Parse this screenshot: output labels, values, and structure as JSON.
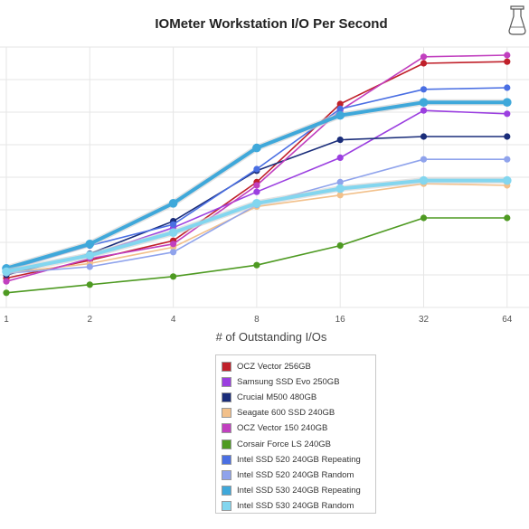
{
  "chart_data": {
    "type": "line",
    "title": "IOMeter Workstation I/O Per Second",
    "xlabel": "# of Outstanding I/Os",
    "ylabel": "",
    "x": [
      1,
      2,
      4,
      8,
      16,
      32,
      64
    ],
    "x_scale": "log2",
    "ylim": [
      0,
      8
    ],
    "grid": true,
    "legend_position": "bottom-center",
    "series": [
      {
        "name": "OCZ Vector 256GB",
        "color": "#c0202a",
        "values": [
          0.9,
          1.45,
          2.05,
          3.85,
          6.25,
          7.5,
          7.55
        ]
      },
      {
        "name": "Samsung SSD Evo 250GB",
        "color": "#9b3fe0",
        "values": [
          1.05,
          1.6,
          2.45,
          3.55,
          4.6,
          6.05,
          5.95
        ]
      },
      {
        "name": "Crucial M500 480GB",
        "color": "#1a2d7a",
        "values": [
          1.0,
          1.65,
          2.65,
          4.2,
          5.15,
          5.25,
          5.25
        ]
      },
      {
        "name": "Seagate 600 SSD 240GB",
        "color": "#f2c08a",
        "values": [
          1.05,
          1.35,
          1.85,
          3.1,
          3.45,
          3.8,
          3.75
        ]
      },
      {
        "name": "OCZ Vector 150 240GB",
        "color": "#c13fbf",
        "values": [
          0.8,
          1.5,
          1.95,
          3.75,
          6.05,
          7.7,
          7.75
        ]
      },
      {
        "name": "Corsair Force LS 240GB",
        "color": "#4e9a22",
        "values": [
          0.45,
          0.7,
          0.95,
          1.3,
          1.9,
          2.75,
          2.75
        ]
      },
      {
        "name": "Intel SSD 520 240GB Repeating",
        "color": "#4a6fe3",
        "values": [
          1.15,
          1.9,
          2.55,
          4.25,
          6.1,
          6.7,
          6.75
        ]
      },
      {
        "name": "Intel SSD 520 240GB Random",
        "color": "#8fa3ec",
        "values": [
          1.05,
          1.25,
          1.7,
          3.15,
          3.85,
          4.55,
          4.55
        ]
      },
      {
        "name": "Intel SSD 530 240GB Repeating",
        "color": "#3fa8da",
        "values": [
          1.2,
          1.95,
          3.2,
          4.9,
          5.9,
          6.3,
          6.3
        ]
      },
      {
        "name": "Intel SSD 530 240GB Random",
        "color": "#83d6ef",
        "values": [
          1.1,
          1.6,
          2.3,
          3.2,
          3.65,
          3.9,
          3.9
        ]
      }
    ],
    "bold_series": [
      "Intel SSD 530 240GB Repeating",
      "Intel SSD 530 240GB Random"
    ]
  },
  "xtick_labels": [
    "1",
    "2",
    "4",
    "8",
    "16",
    "32",
    "64"
  ],
  "corner_icon": "lab-beaker-icon"
}
